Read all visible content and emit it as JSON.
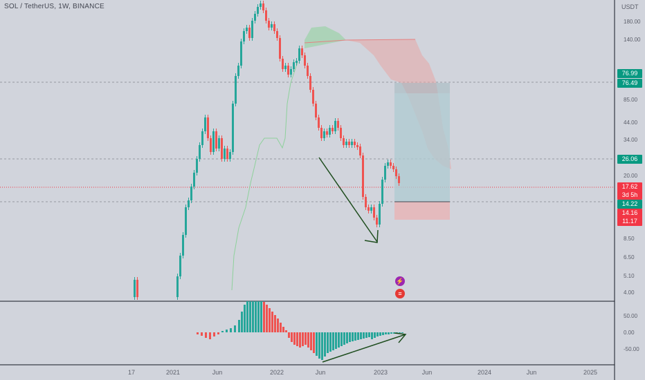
{
  "legend": {
    "text": "SOL / TetherUS, 1W, BINANCE"
  },
  "currency": "USDT",
  "price_axis": [
    "180.00",
    "140.00",
    "85.00",
    "44.00",
    "34.00",
    "20.00",
    "8.50",
    "6.50",
    "5.10",
    "4.00"
  ],
  "oscillator_axis": [
    "50.00",
    "0.00",
    "-50.00"
  ],
  "price_tags": [
    {
      "text": "76.99",
      "color": "#089981"
    },
    {
      "text": "76.49",
      "color": "#089981"
    },
    {
      "text": "26.06",
      "color": "#089981"
    },
    {
      "text": "17.62",
      "color": "#f23645"
    },
    {
      "text": "3d 5h",
      "color": "#f23645"
    },
    {
      "text": "14.22",
      "color": "#089981"
    },
    {
      "text": "14.16",
      "color": "#f23645"
    },
    {
      "text": "11.17",
      "color": "#f23645"
    }
  ],
  "time_axis": [
    "17",
    "2021",
    "Jun",
    "2022",
    "Jun",
    "2023",
    "Jun",
    "2024",
    "Jun",
    "2025"
  ],
  "events": [
    {
      "icon": "lightning-icon",
      "glyph": "⚡"
    },
    {
      "icon": "us-flag-icon",
      "glyph": "≡"
    }
  ],
  "colors": {
    "up": "#26a69a",
    "down": "#ef5350",
    "background": "#d1d4dc"
  }
}
